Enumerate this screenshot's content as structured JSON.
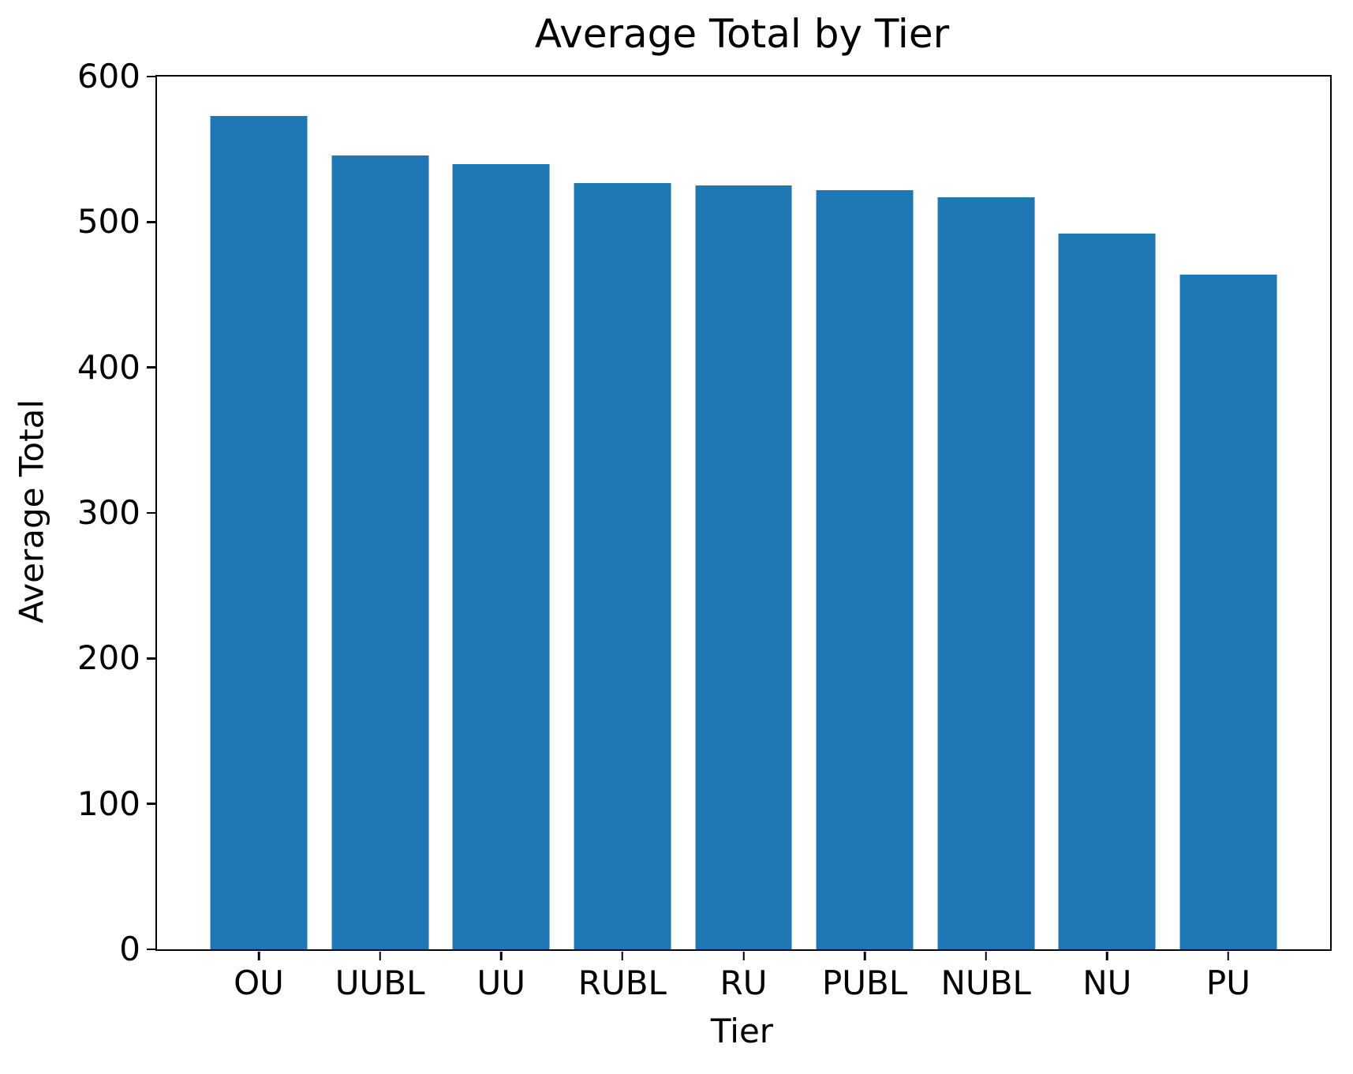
{
  "chart_data": {
    "type": "bar",
    "title": "Average Total by Tier",
    "xlabel": "Tier",
    "ylabel": "Average Total",
    "categories": [
      "OU",
      "UUBL",
      "UU",
      "RUBL",
      "RU",
      "PUBL",
      "NUBL",
      "NU",
      "PU"
    ],
    "values": [
      573,
      546,
      540,
      527,
      525,
      522,
      517,
      492,
      464
    ],
    "ylim": [
      0,
      600
    ],
    "yticks": [
      0,
      100,
      200,
      300,
      400,
      500,
      600
    ],
    "grid": false,
    "legend": "none",
    "bar_color": "#1f77b4",
    "axis_color": "#000000",
    "background_color": "#ffffff",
    "bar_width_fraction": 0.8,
    "x_margin_units": 0.44
  }
}
